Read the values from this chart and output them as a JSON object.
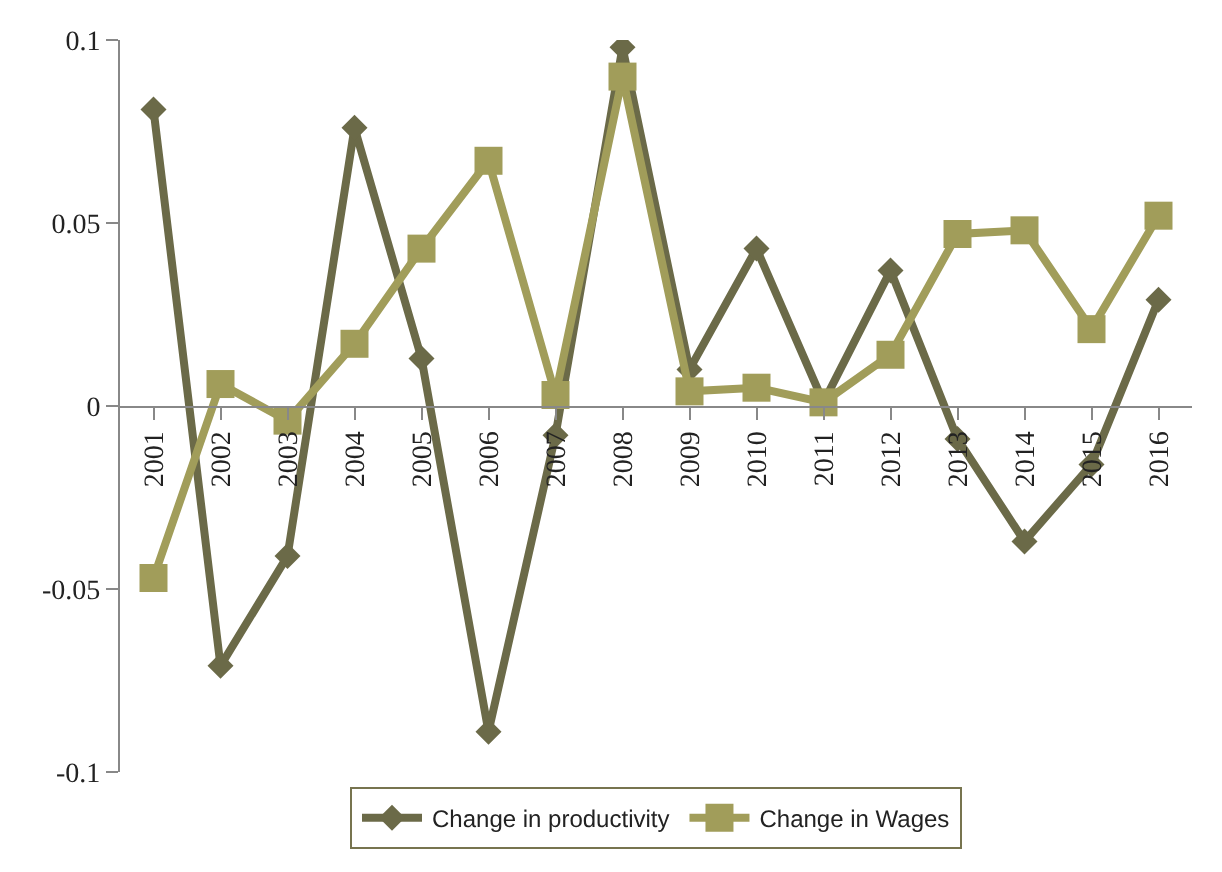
{
  "chart_data": {
    "type": "line",
    "categories": [
      "2001",
      "2002",
      "2003",
      "2004",
      "2005",
      "2006",
      "2007",
      "2008",
      "2009",
      "2010",
      "2011",
      "2012",
      "2013",
      "2014",
      "2015",
      "2016"
    ],
    "series": [
      {
        "name": "Change in productivity",
        "color": "#6b6a48",
        "marker": "diamond",
        "values": [
          0.081,
          -0.071,
          -0.041,
          0.076,
          0.013,
          -0.089,
          -0.008,
          0.098,
          0.01,
          0.043,
          0.001,
          0.037,
          -0.009,
          -0.037,
          -0.016,
          0.029
        ]
      },
      {
        "name": "Change in Wages",
        "color": "#a19d5a",
        "marker": "square",
        "values": [
          -0.047,
          0.006,
          -0.004,
          0.017,
          0.043,
          0.067,
          0.003,
          0.09,
          0.004,
          0.005,
          0.001,
          0.014,
          0.047,
          0.048,
          0.021,
          0.052
        ]
      }
    ],
    "ylim": [
      -0.1,
      0.1
    ],
    "yticks": [
      {
        "value": -0.1,
        "label": "-0.1"
      },
      {
        "value": -0.05,
        "label": "-0.05"
      },
      0,
      0.05,
      0.1
    ],
    "legend": "bottom"
  }
}
